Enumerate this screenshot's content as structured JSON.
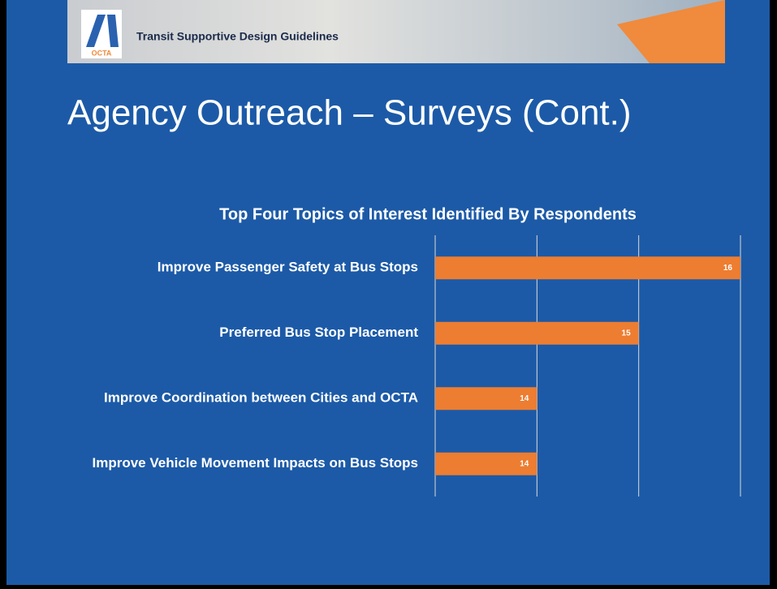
{
  "header": {
    "banner_text": "Transit Supportive Design Guidelines",
    "logo_text": "OCTA"
  },
  "slide_title": "Agency Outreach – Surveys (Cont.)",
  "chart_data": {
    "type": "bar",
    "orientation": "horizontal",
    "title": "Top Four Topics of Interest Identified By Respondents",
    "categories": [
      "Improve Passenger Safety at Bus Stops",
      "Preferred Bus Stop Placement",
      "Improve Coordination between Cities and OCTA",
      "Improve Vehicle Movement Impacts on Bus Stops"
    ],
    "values": [
      16,
      15,
      14,
      14
    ],
    "color": "#ed7d31",
    "xlim": [
      13,
      16
    ],
    "xticks": [
      13,
      14,
      15,
      16
    ],
    "grid": true
  }
}
